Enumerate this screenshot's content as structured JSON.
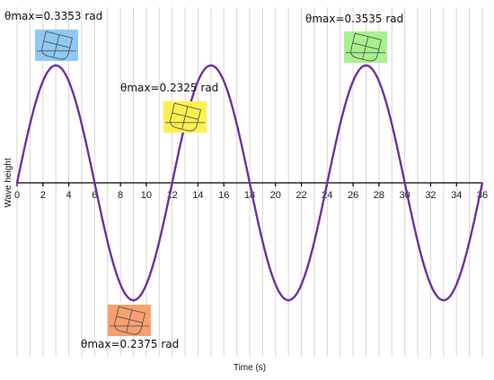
{
  "chart_data": {
    "type": "line",
    "xlabel": "Time (s)",
    "ylabel": "Wave height",
    "xlim": [
      0,
      36
    ],
    "x_ticks": [
      0,
      2,
      4,
      6,
      8,
      10,
      12,
      14,
      16,
      18,
      20,
      22,
      24,
      26,
      28,
      30,
      32,
      34,
      36
    ],
    "ylim": [
      -1.25,
      1.25
    ],
    "grid": "vertical",
    "legend": "none",
    "series": [
      {
        "color": "#7030a0",
        "x": [
          0,
          3,
          6,
          9,
          12,
          15,
          18,
          21,
          24,
          27,
          30,
          33,
          36
        ],
        "y": [
          0,
          1,
          0,
          -1,
          0,
          1,
          0,
          -1,
          0,
          1,
          0,
          -1,
          0
        ]
      }
    ],
    "annotations": [
      {
        "text": "θmax=0.3353 rad",
        "color": "#8ec9f5",
        "x": 3,
        "y": 1
      },
      {
        "text": "θmax=0.2375 rad",
        "color": "#f8a06e",
        "x": 9,
        "y": -1
      },
      {
        "text": "θmax=0.2325 rad",
        "color": "#fff04d",
        "x": 13,
        "y": 0.5
      },
      {
        "text": "θmax=0.3535 rad",
        "color": "#a8f090",
        "x": 27,
        "y": 1
      }
    ]
  }
}
